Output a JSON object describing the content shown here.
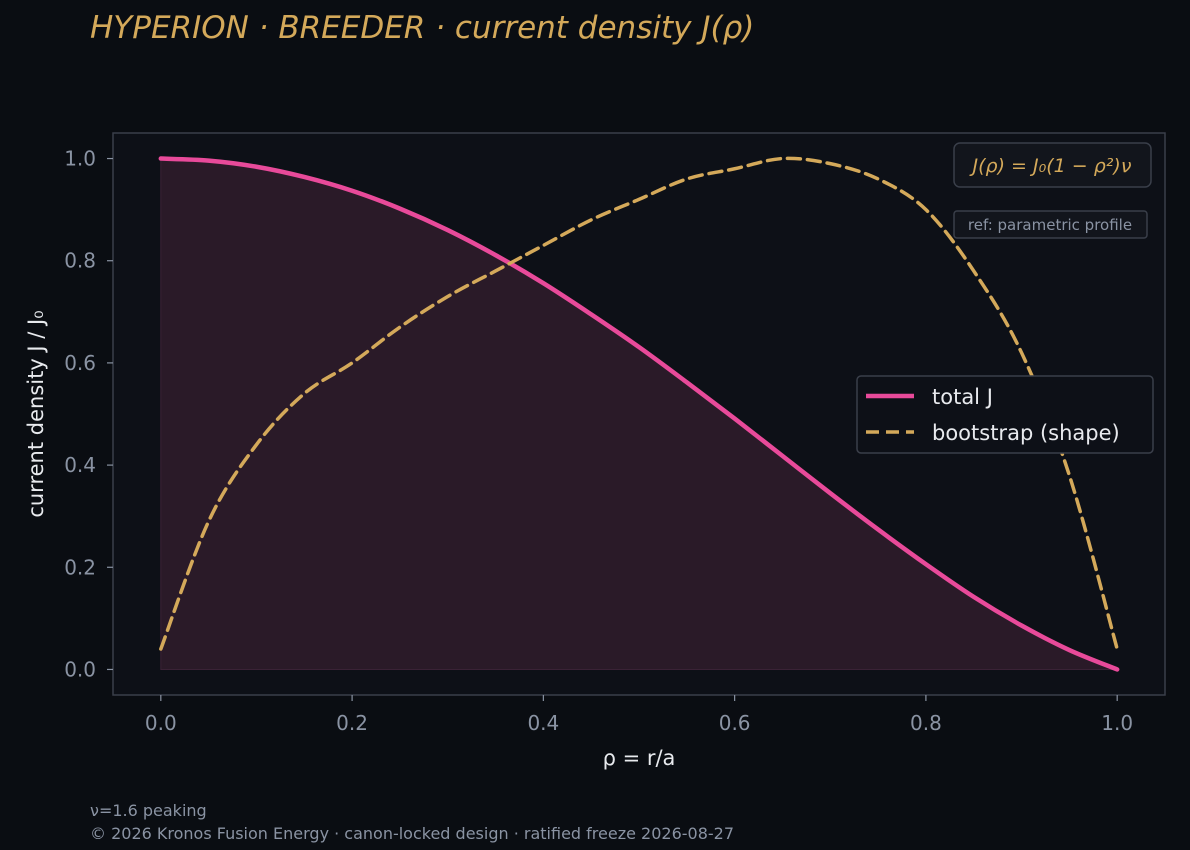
{
  "title": "HYPERION · BREEDER  ·  current density J(ρ)",
  "formula": "J(ρ) = J₀(1 − ρ²)ν",
  "reference_note": "ref: parametric profile",
  "footer": {
    "note": "ν=1.6 peaking",
    "copyright": "© 2026 Kronos Fusion Energy · canon-locked design · ratified freeze 2026-08-27"
  },
  "colors": {
    "total": "#e84a9a",
    "bootstrap": "#d4a95a",
    "background": "#0a0d12",
    "plot_background": "#0d1017",
    "frame": "#3a3f4a",
    "fill": "#2a1a28"
  },
  "chart_data": {
    "type": "line",
    "xlabel": "ρ = r/a",
    "ylabel": "current density J / J₀",
    "xlim": [
      -0.05,
      1.05
    ],
    "ylim": [
      -0.05,
      1.05
    ],
    "xticks": [
      "0.0",
      "0.2",
      "0.4",
      "0.6",
      "0.8",
      "1.0"
    ],
    "yticks": [
      "0.0",
      "0.2",
      "0.4",
      "0.6",
      "0.8",
      "1.0"
    ],
    "x": [
      0.0,
      0.05,
      0.1,
      0.15,
      0.2,
      0.25,
      0.3,
      0.35,
      0.4,
      0.45,
      0.5,
      0.55,
      0.6,
      0.65,
      0.7,
      0.75,
      0.8,
      0.85,
      0.9,
      0.95,
      1.0
    ],
    "legend_position": "center-right",
    "grid": false,
    "series": [
      {
        "name": "total J",
        "style": "solid",
        "filled": true,
        "values": [
          1.0,
          0.996,
          0.984,
          0.964,
          0.937,
          0.902,
          0.86,
          0.811,
          0.756,
          0.695,
          0.631,
          0.562,
          0.491,
          0.418,
          0.345,
          0.274,
          0.206,
          0.142,
          0.086,
          0.038,
          0.0
        ]
      },
      {
        "name": "bootstrap (shape)",
        "style": "dashed",
        "filled": false,
        "values": [
          0.04,
          0.29,
          0.44,
          0.54,
          0.6,
          0.67,
          0.73,
          0.78,
          0.83,
          0.88,
          0.92,
          0.96,
          0.98,
          1.0,
          0.99,
          0.96,
          0.9,
          0.78,
          0.62,
          0.38,
          0.04
        ]
      }
    ]
  }
}
